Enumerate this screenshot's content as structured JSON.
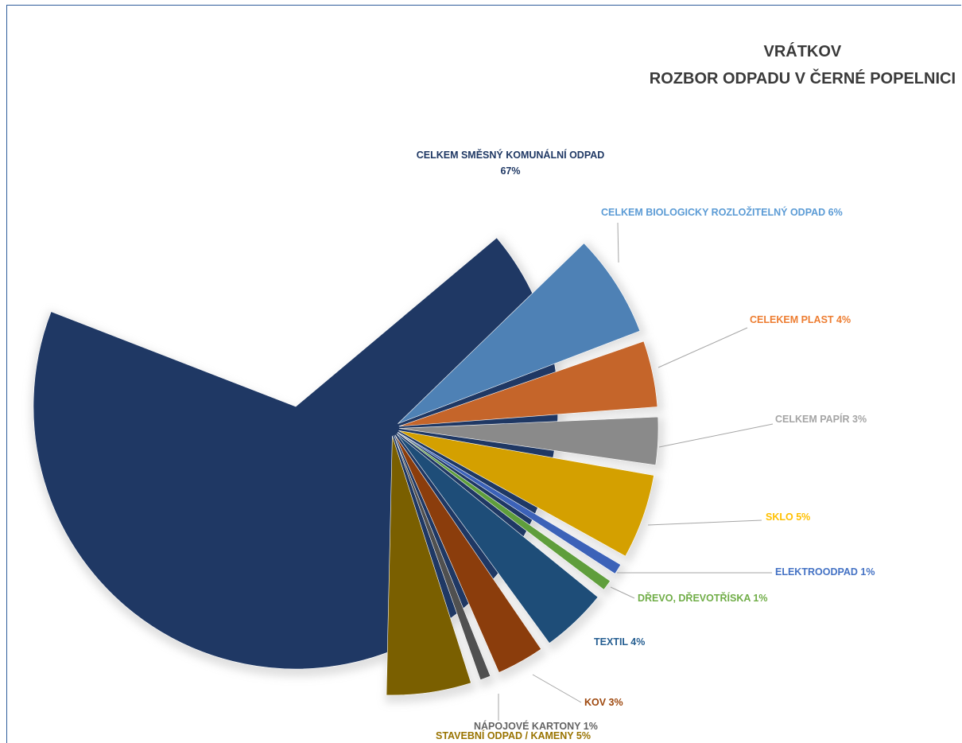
{
  "chart_data": {
    "type": "pie",
    "title_lines": [
      "VRÁTKOV",
      "ROZBOR ODPADU V ČERNÉ POPELNICI"
    ],
    "slices": [
      {
        "label": "CELKEM SMĚSNÝ KOMUNÁLNÍ ODPAD",
        "value_label": "67%",
        "value": 67,
        "color": "#1f3864"
      },
      {
        "label": "CELKEM BIOLOGICKY ROZLOŽITELNÝ ODPAD 6%",
        "value": 6,
        "color": "#4e81b5"
      },
      {
        "label": "CELEKEM PLAST 4%",
        "value": 4,
        "color": "#c5652a"
      },
      {
        "label": "CELKEM PAPÍR 3%",
        "value": 3,
        "color": "#8a8a8a"
      },
      {
        "label": "SKLO 5%",
        "value": 5,
        "color": "#d4a000"
      },
      {
        "label": "ELEKTROODPAD 1%",
        "value": 1,
        "color": "#3c62b8"
      },
      {
        "label": "DŘEVO, DŘEVOTŘÍSKA 1%",
        "value": 1,
        "color": "#5f9e3c"
      },
      {
        "label": "TEXTIL 4%",
        "value": 4,
        "color": "#1e4d78"
      },
      {
        "label": "KOV 3%",
        "value": 3,
        "color": "#8b3d0c"
      },
      {
        "label": "NÁPOJOVÉ KARTONY 1%",
        "value": 1,
        "color": "#505050"
      },
      {
        "label": "STAVEBNÍ ODPAD / KAMENY 5%",
        "value": 5,
        "color": "#7a5f00"
      }
    ],
    "label_colors": {
      "CELKEM SMĚSNÝ KOMUNÁLNÍ ODPAD": "#1f3864",
      "CELKEM BIOLOGICKY ROZLOŽITELNÝ ODPAD 6%": "#5b9bd5",
      "CELEKEM PLAST 4%": "#ed7d31",
      "CELKEM PAPÍR 3%": "#a5a5a5",
      "SKLO 5%": "#ffc000",
      "ELEKTROODPAD 1%": "#4472c4",
      "DŘEVO, DŘEVOTŘÍSKA 1%": "#70ad47",
      "TEXTIL 4%": "#255e91",
      "KOV 3%": "#9e480e",
      "NÁPOJOVÉ KARTONY 1%": "#636363",
      "STAVEBNÍ ODPAD / KAMENY 5%": "#997300"
    },
    "legend": "none",
    "grid": false
  }
}
